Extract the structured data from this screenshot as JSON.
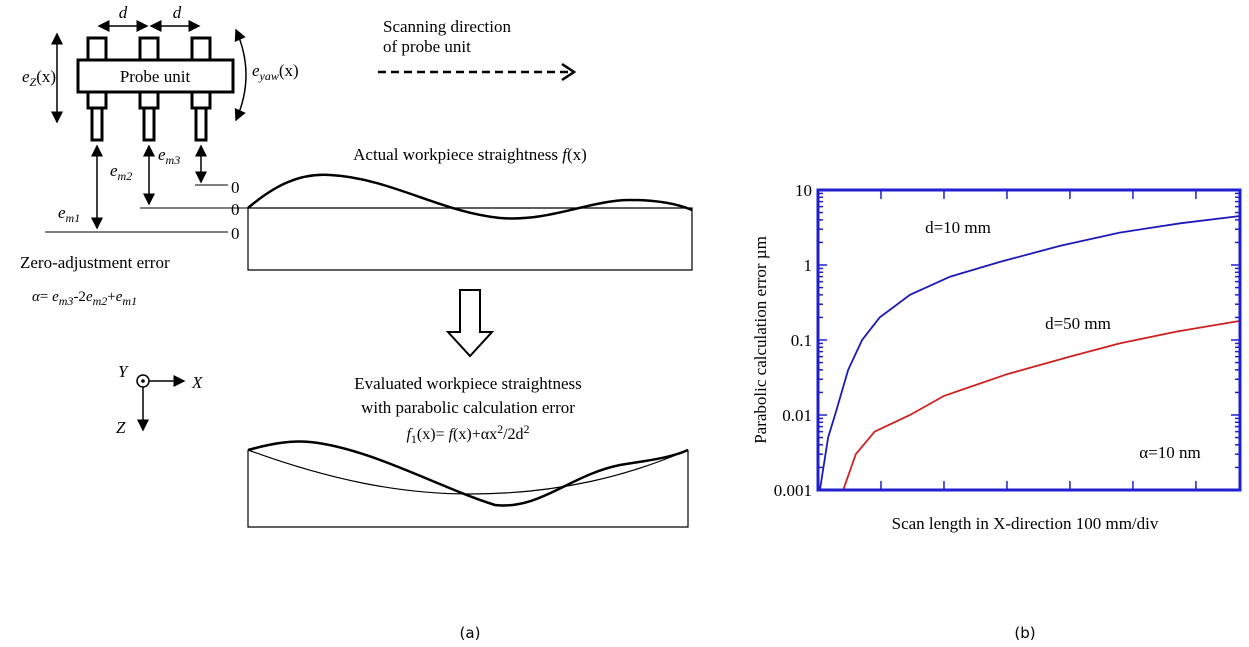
{
  "diagram": {
    "d_labels": [
      "d",
      "d"
    ],
    "probe_unit": "Probe unit",
    "e_z": [
      "e",
      "Z",
      "(x)"
    ],
    "e_yaw": [
      "e",
      "yaw",
      "(x)"
    ],
    "scanning": [
      "Scanning direction",
      "of probe unit"
    ],
    "e_m1": [
      "e",
      "m1"
    ],
    "e_m2": [
      "e",
      "m2"
    ],
    "e_m3": [
      "e",
      "m3"
    ],
    "zeros": [
      "0",
      "0",
      "0"
    ],
    "actual": [
      "Actual workpiece straightness ",
      "f",
      "(x)"
    ],
    "zero_adjust": "Zero-adjustment error",
    "alpha_formula": [
      "α",
      "= ",
      "e",
      "m3",
      "-2",
      "e",
      "m2",
      "+",
      "e",
      "m1"
    ],
    "axes": [
      "Y",
      "X",
      "Z"
    ],
    "evaluated": [
      "Evaluated workpiece straightness",
      "with parabolic calculation error"
    ],
    "f1_formula": [
      "f",
      "1",
      "(x)= ",
      "f",
      "(x)+αx",
      "2",
      "/2d",
      "2"
    ],
    "panel_label": "(a)"
  },
  "chart_data": {
    "type": "line",
    "panel_label": "(b)",
    "xlabel": "Scan length in X-direction 100 mm/div",
    "ylabel": "Parabolic calculation error µm",
    "ylog": true,
    "ylim": [
      0.001,
      10
    ],
    "yticks": [
      0.001,
      0.01,
      0.1,
      1,
      10
    ],
    "xlim": [
      0,
      670
    ],
    "xticks": [
      0,
      100,
      200,
      300,
      400,
      500,
      600
    ],
    "frame_color": "#1f1fd0",
    "series": [
      {
        "name": "d=10 mm",
        "color": "#1a1ab8",
        "x": [
          3,
          16,
          27,
          48,
          70,
          98,
          146,
          210,
          289,
          384,
          479,
          575,
          670
        ],
        "values": [
          0.001,
          0.005,
          0.01,
          0.04,
          0.1,
          0.2,
          0.4,
          0.7,
          1.1,
          1.8,
          2.7,
          3.6,
          4.5
        ]
      },
      {
        "name": "d=50 mm",
        "color": "#d02020",
        "x": [
          40,
          60,
          90,
          146,
          200,
          300,
          400,
          479,
          570,
          670
        ],
        "values": [
          0.001,
          0.003,
          0.006,
          0.01,
          0.018,
          0.035,
          0.06,
          0.09,
          0.13,
          0.18
        ]
      }
    ],
    "annotations": [
      "α=10 nm"
    ]
  }
}
